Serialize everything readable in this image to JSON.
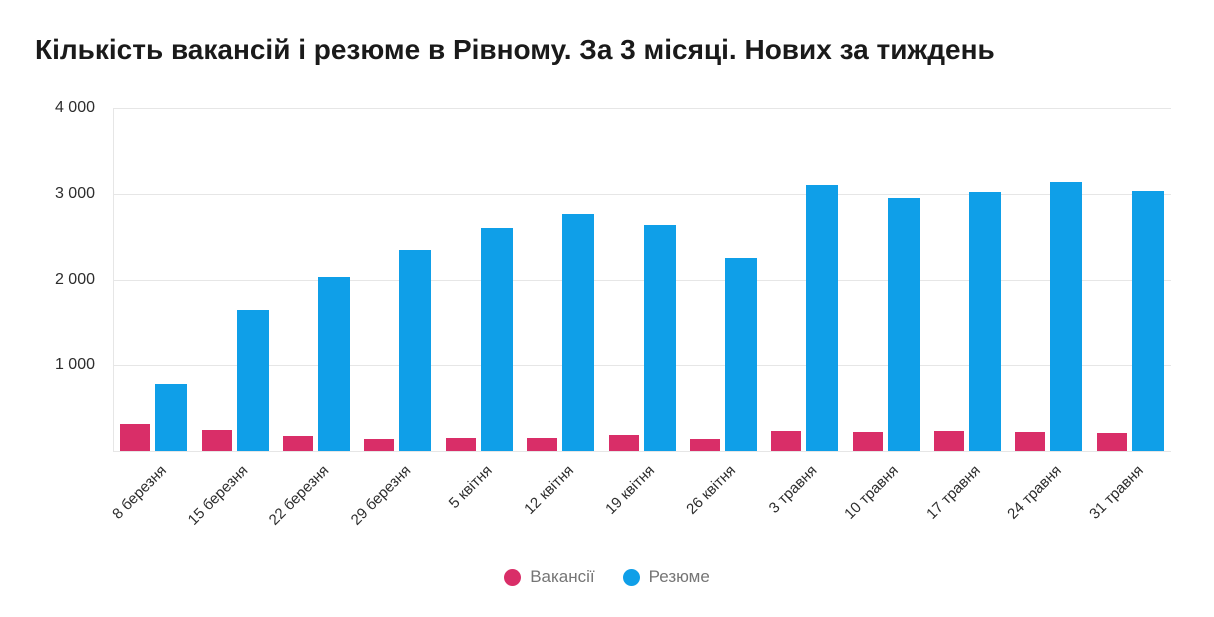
{
  "title": "Кількість вакансій і резюме в Рівному. За 3 місяці. Нових за тиждень",
  "chart_data": {
    "type": "bar",
    "title": "Кількість вакансій і резюме в Рівному. За 3 місяці. Нових за тиждень",
    "categories": [
      "8 березня",
      "15 березня",
      "22 березня",
      "29 березня",
      "5 квітня",
      "12 квітня",
      "19 квітня",
      "26 квітня",
      "3 травня",
      "10 травня",
      "17 травня",
      "24 травня",
      "31 травня"
    ],
    "series": [
      {
        "name": "Вакансії",
        "color": "#d92e68",
        "values": [
          320,
          245,
          170,
          145,
          155,
          150,
          190,
          140,
          230,
          220,
          230,
          220,
          215
        ]
      },
      {
        "name": "Резюме",
        "color": "#0f9fe8",
        "values": [
          785,
          1640,
          2030,
          2340,
          2595,
          2765,
          2640,
          2250,
          3100,
          2955,
          3015,
          3135,
          3030
        ]
      }
    ],
    "xlabel": "",
    "ylabel": "",
    "ylim": [
      0,
      4000
    ],
    "yticks": [
      1000,
      2000,
      3000,
      4000
    ],
    "ytick_labels": [
      "1 000",
      "2 000",
      "3 000",
      "4 000"
    ],
    "grid": true,
    "legend_position": "bottom"
  },
  "colors": {
    "background": "#ffffff",
    "grid": "#e6e6e6",
    "axis_text": "#2d2d2d",
    "title_text": "#1a1a1a",
    "legend_text": "#757575",
    "vacancies": "#d92e68",
    "resumes": "#0f9fe8"
  }
}
